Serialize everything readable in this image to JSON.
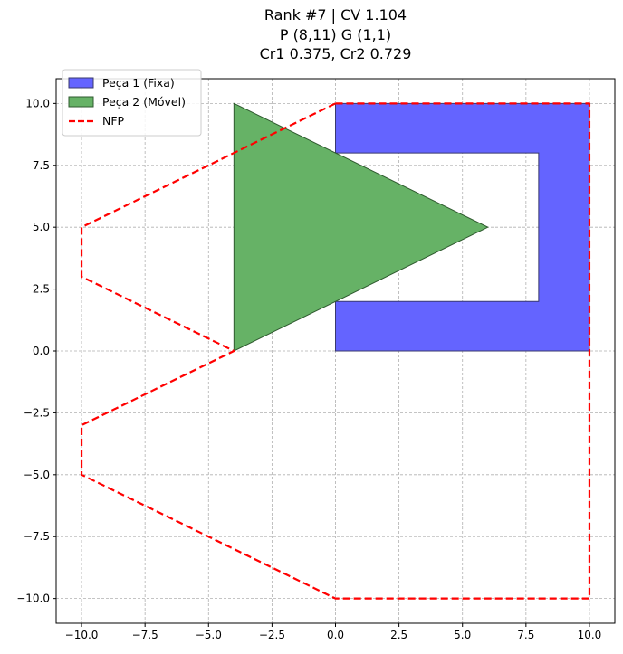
{
  "chart_data": {
    "type": "polygon-plot",
    "title_lines": [
      "Rank #7 | CV 1.104",
      "P (8,11) G (1,1)",
      "Cr1 0.375, Cr2 0.729"
    ],
    "xlim": [
      -11,
      11
    ],
    "ylim": [
      -11,
      11
    ],
    "x_ticks": [
      -10.0,
      -7.5,
      -5.0,
      -2.5,
      0.0,
      2.5,
      5.0,
      7.5,
      10.0
    ],
    "y_ticks": [
      -10.0,
      -7.5,
      -5.0,
      -2.5,
      0.0,
      2.5,
      5.0,
      7.5,
      10.0
    ],
    "x_tick_labels": [
      "−10.0",
      "−7.5",
      "−5.0",
      "−2.5",
      "0.0",
      "2.5",
      "5.0",
      "7.5",
      "10.0"
    ],
    "y_tick_labels": [
      "−10.0",
      "−7.5",
      "−5.0",
      "−2.5",
      "0.0",
      "2.5",
      "5.0",
      "7.5",
      "10.0"
    ],
    "grid": true,
    "legend_position": "top-left",
    "series": [
      {
        "name": "Peça 1 (Fixa)",
        "kind": "polygon",
        "color": "#6464ff",
        "edge": "#3a3a6e",
        "points": [
          [
            0,
            0
          ],
          [
            10,
            0
          ],
          [
            10,
            10
          ],
          [
            0,
            10
          ],
          [
            0,
            8
          ],
          [
            8,
            8
          ],
          [
            8,
            2
          ],
          [
            0,
            2
          ]
        ]
      },
      {
        "name": "Peça 2 (Móvel)",
        "kind": "polygon",
        "color": "#66b266",
        "edge": "#2f5a2f",
        "points": [
          [
            -4,
            0
          ],
          [
            6,
            5
          ],
          [
            -4,
            10
          ]
        ]
      },
      {
        "name": "NFP",
        "kind": "dashed-line",
        "color": "#ff0000",
        "points": [
          [
            0,
            10
          ],
          [
            10,
            10
          ],
          [
            10,
            -10
          ],
          [
            0,
            -10
          ],
          [
            -10,
            -5
          ],
          [
            -10,
            -3
          ],
          [
            -4,
            0
          ],
          [
            -10,
            3
          ],
          [
            -10,
            5
          ],
          [
            0,
            10
          ]
        ]
      }
    ]
  }
}
